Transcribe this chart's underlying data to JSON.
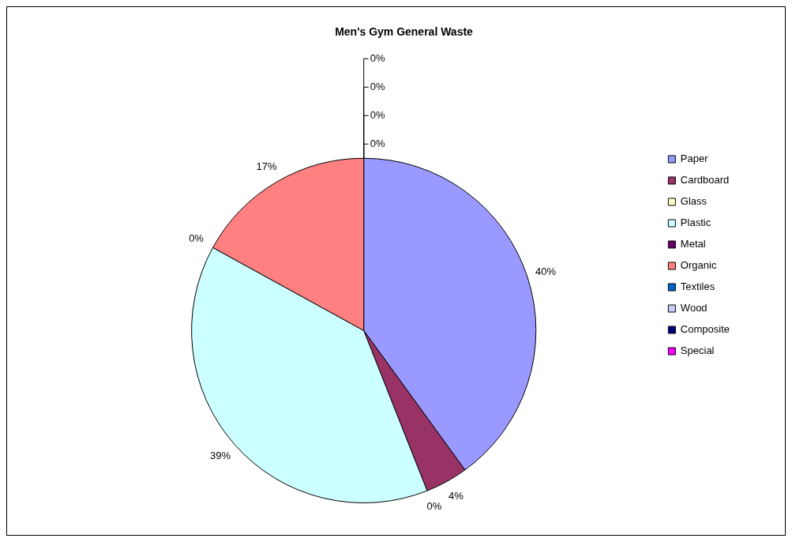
{
  "chart_data": {
    "type": "pie",
    "title": "Men's Gym General Waste",
    "categories": [
      "Paper",
      "Cardboard",
      "Glass",
      "Plastic",
      "Metal",
      "Organic",
      "Textiles",
      "Wood",
      "Composite",
      "Special"
    ],
    "values": [
      40,
      4,
      0,
      39,
      0,
      17,
      0,
      0,
      0,
      0
    ],
    "colors": [
      "#9999ff",
      "#993366",
      "#ffffcc",
      "#ccffff",
      "#660066",
      "#ff8080",
      "#0066cc",
      "#ccccff",
      "#000080",
      "#ff00ff"
    ],
    "value_labels": [
      "40%",
      "4%",
      "0%",
      "39%",
      "0%",
      "17%",
      "0%",
      "0%",
      "0%",
      "0%"
    ],
    "legend": "right"
  }
}
